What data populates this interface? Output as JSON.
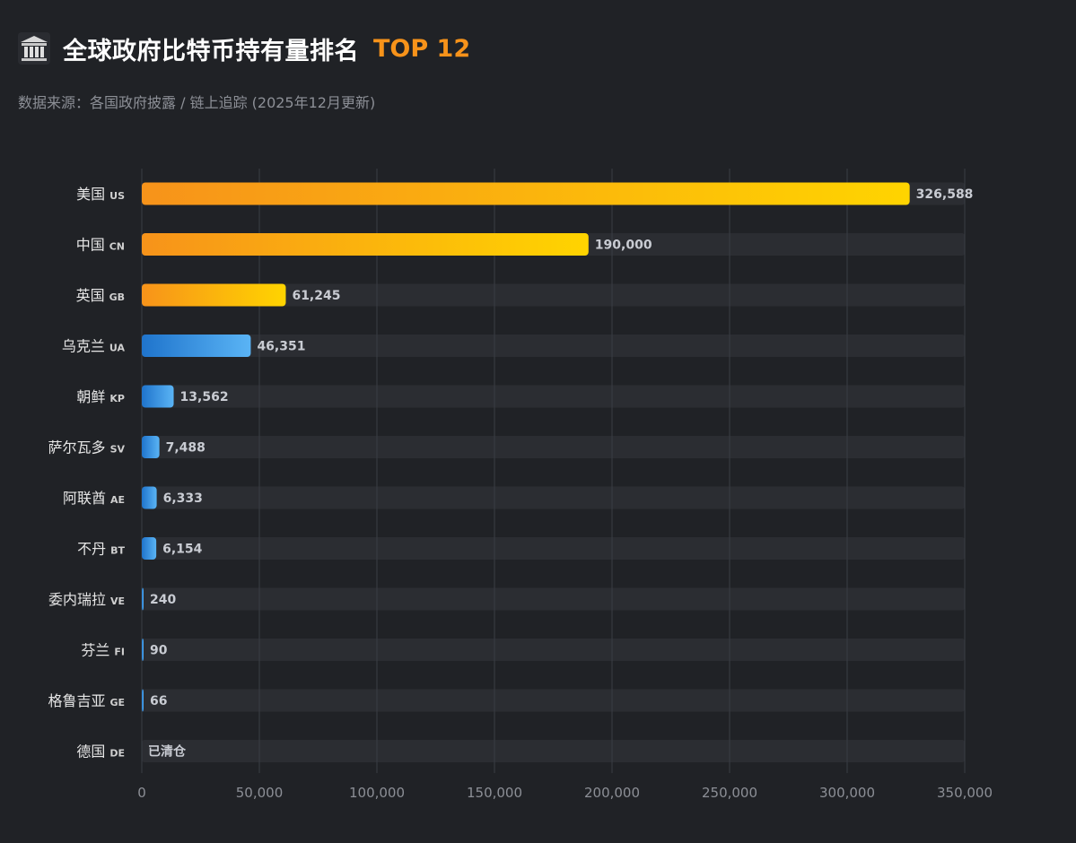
{
  "header": {
    "icon": "bank-building-icon",
    "title": "全球政府比特币持有量排名",
    "highlight": "TOP 12",
    "subtitle": "数据来源：各国政府披露 / 链上追踪 (2025年12月更新)"
  },
  "colors": {
    "background": "#202226",
    "track": "#2b2d32",
    "gold_start": "#f7931a",
    "gold_end": "#ffd400",
    "blue_start": "#1f74cc",
    "blue_end": "#5ab4f5",
    "grid": "#3a3d44",
    "value_text": "#c9ccd3"
  },
  "chart_data": {
    "type": "bar",
    "orientation": "horizontal",
    "title": "全球政府比特币持有量排名 TOP 12",
    "subtitle": "数据来源：各国政府披露 / 链上追踪 (2025年12月更新)",
    "xlabel": "",
    "ylabel": "",
    "xlim": [
      0,
      350000
    ],
    "grid": true,
    "xticks": [
      0,
      50000,
      100000,
      150000,
      200000,
      250000,
      300000,
      350000
    ],
    "xtick_labels": [
      "0",
      "50,000",
      "100,000",
      "150,000",
      "200,000",
      "250,000",
      "300,000",
      "350,000"
    ],
    "categories": [
      {
        "name": "美国",
        "code": "US",
        "value": 326588,
        "label": "326,588",
        "color_group": "gold"
      },
      {
        "name": "中国",
        "code": "CN",
        "value": 190000,
        "label": "190,000",
        "color_group": "gold"
      },
      {
        "name": "英国",
        "code": "GB",
        "value": 61245,
        "label": "61,245",
        "color_group": "gold"
      },
      {
        "name": "乌克兰",
        "code": "UA",
        "value": 46351,
        "label": "46,351",
        "color_group": "blue"
      },
      {
        "name": "朝鲜",
        "code": "KP",
        "value": 13562,
        "label": "13,562",
        "color_group": "blue"
      },
      {
        "name": "萨尔瓦多",
        "code": "SV",
        "value": 7488,
        "label": "7,488",
        "color_group": "blue"
      },
      {
        "name": "阿联酋",
        "code": "AE",
        "value": 6333,
        "label": "6,333",
        "color_group": "blue"
      },
      {
        "name": "不丹",
        "code": "BT",
        "value": 6154,
        "label": "6,154",
        "color_group": "blue"
      },
      {
        "name": "委内瑞拉",
        "code": "VE",
        "value": 240,
        "label": "240",
        "color_group": "blue"
      },
      {
        "name": "芬兰",
        "code": "FI",
        "value": 90,
        "label": "90",
        "color_group": "blue"
      },
      {
        "name": "格鲁吉亚",
        "code": "GE",
        "value": 66,
        "label": "66",
        "color_group": "blue"
      },
      {
        "name": "德国",
        "code": "DE",
        "value": 0,
        "label": "已清仓",
        "color_group": "blue"
      }
    ]
  }
}
